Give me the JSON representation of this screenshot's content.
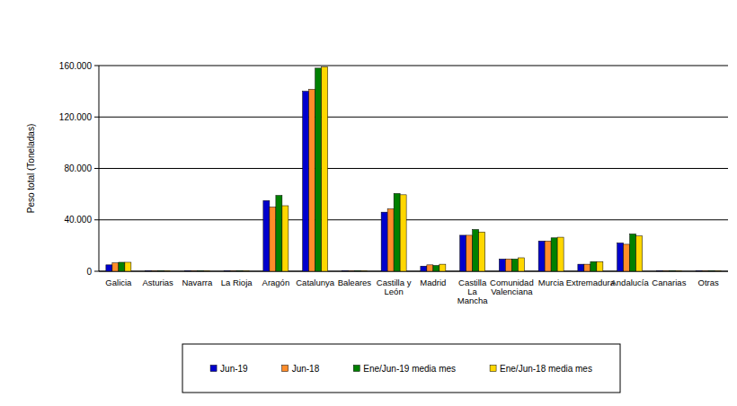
{
  "chart_data": {
    "type": "bar",
    "y_label": "Peso total (Toneladas)",
    "categories": [
      "Galicia",
      "Asturias",
      "Navarra",
      "La Rioja",
      "Aragón",
      "Catalunya",
      "Baleares",
      "Castilla y León",
      "Madrid",
      "Castilla La Mancha",
      "Comunidad Valenciana",
      "Murcia",
      "Extremadura",
      "Andalucía",
      "Canarias",
      "Otras"
    ],
    "series": [
      {
        "name": "Jun-19",
        "color": "#0000cc",
        "values": [
          5000,
          500,
          500,
          500,
          55000,
          140000,
          500,
          46000,
          4000,
          28000,
          9500,
          23500,
          5500,
          22000,
          500,
          500
        ]
      },
      {
        "name": "Jun-18",
        "color": "#ff8c2a",
        "values": [
          6500,
          500,
          500,
          500,
          50000,
          141500,
          500,
          48500,
          5000,
          28000,
          9500,
          23500,
          5500,
          21000,
          500,
          500
        ]
      },
      {
        "name": "Ene/Jun-19 media mes",
        "color": "#008000",
        "values": [
          7000,
          500,
          500,
          500,
          59000,
          158000,
          500,
          60500,
          4500,
          32500,
          9500,
          26000,
          7500,
          29000,
          500,
          500
        ]
      },
      {
        "name": "Ene/Jun-18 media mes",
        "color": "#ffd700",
        "values": [
          7000,
          500,
          500,
          500,
          51000,
          159000,
          500,
          59500,
          5500,
          30500,
          10500,
          26500,
          7500,
          27500,
          500,
          500
        ]
      }
    ],
    "ylim": [
      0,
      160000
    ],
    "yticks": [
      0,
      {
        "value": 40000,
        "label": "40.000"
      },
      {
        "value": 80000,
        "label": "80.000"
      },
      {
        "value": 120000,
        "label": "120.000"
      },
      {
        "value": 160000,
        "label": "160.000"
      }
    ],
    "grid": true,
    "legend": "bottom"
  }
}
